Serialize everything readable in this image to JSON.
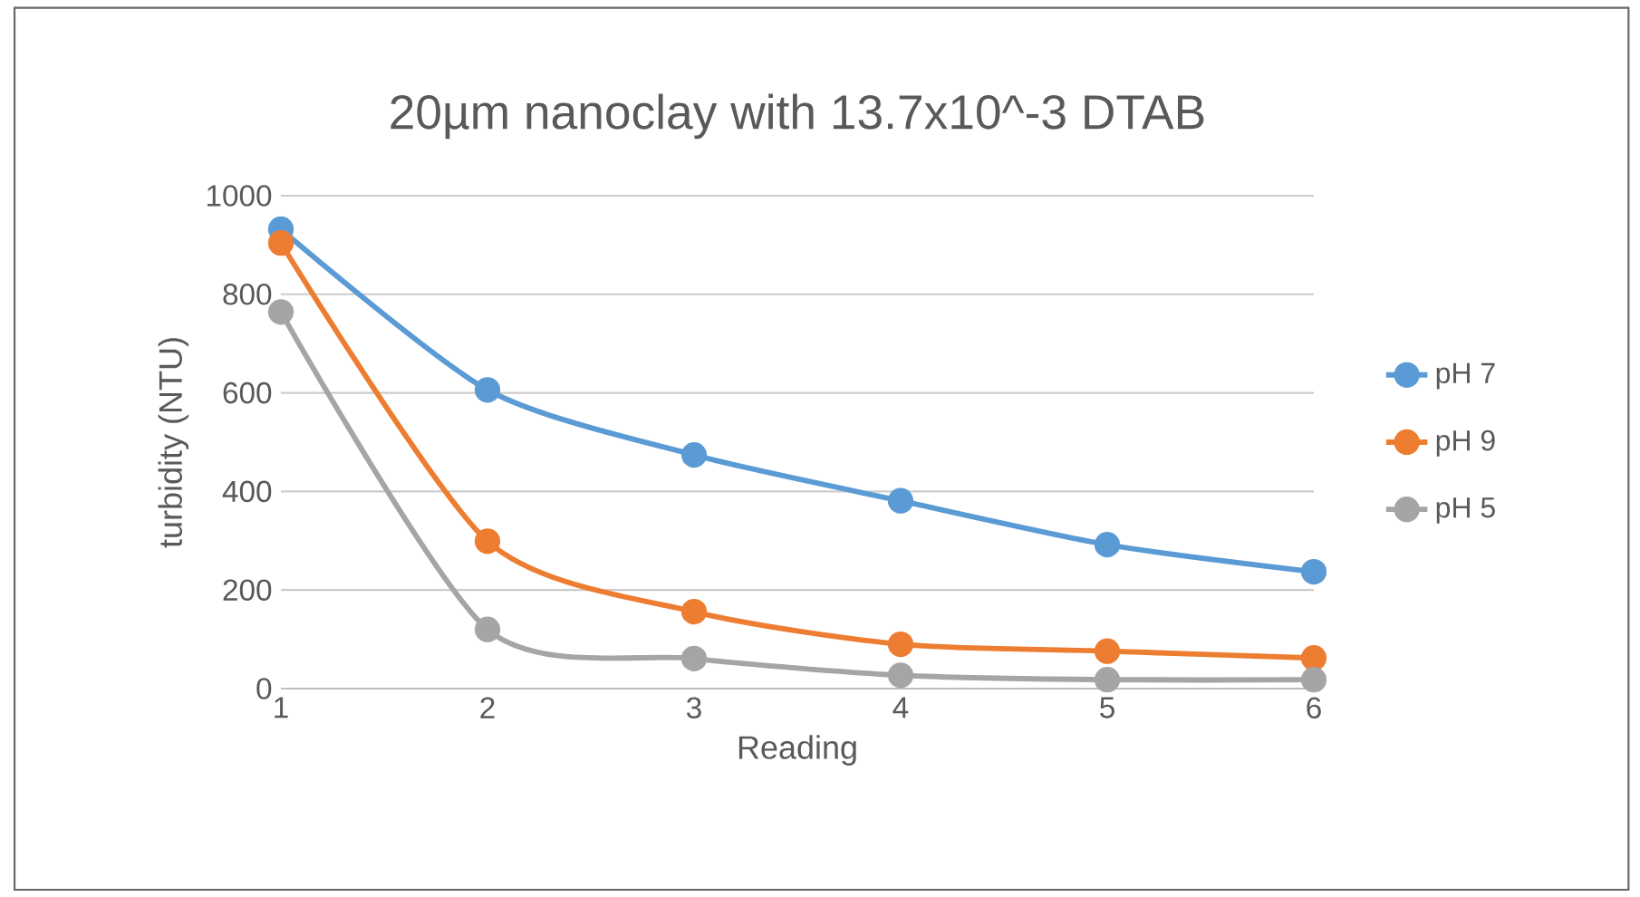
{
  "chart_data": {
    "type": "line",
    "title": "20µm nanoclay with 13.7x10^-3 DTAB",
    "xlabel": "Reading",
    "ylabel": "turbidity (NTU)",
    "categories": [
      "1",
      "2",
      "3",
      "4",
      "5",
      "6"
    ],
    "series": [
      {
        "name": "pH 7",
        "color": "#5b9bd5",
        "values": [
          932,
          606,
          474,
          381,
          292,
          237
        ]
      },
      {
        "name": "pH 9",
        "color": "#ed7d31",
        "values": [
          904,
          299,
          156,
          90,
          76,
          62
        ]
      },
      {
        "name": "pH 5",
        "color": "#a5a5a5",
        "values": [
          764,
          120,
          61,
          27,
          18,
          18
        ]
      }
    ],
    "ylim": [
      0,
      1000
    ],
    "yticks": [
      0,
      200,
      400,
      600,
      800,
      1000
    ],
    "grid": "y",
    "legend": "right",
    "marker": "circle"
  }
}
